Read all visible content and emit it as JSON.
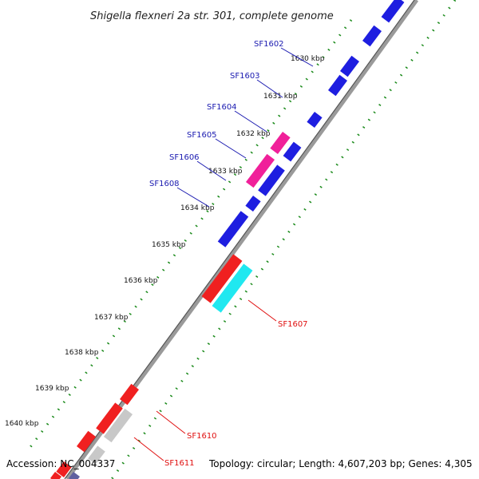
{
  "title": "Shigella flexneri 2a str. 301, complete genome",
  "footer": {
    "accession": "Accession: NC_004337",
    "summary": "Topology: circular; Length: 4,607,203 bp; Genes: 4,305"
  },
  "ticks": [
    "1630 kbp",
    "1631 kbp",
    "1632 kbp",
    "1633 kbp",
    "1634 kbp",
    "1635 kbp",
    "1636 kbp",
    "1637 kbp",
    "1638 kbp",
    "1639 kbp",
    "1640 kbp"
  ],
  "gene_labels": {
    "top": [
      "SF1602",
      "SF1603",
      "SF1604",
      "SF1605",
      "SF1606",
      "SF1608"
    ],
    "bottom": [
      "SF1607",
      "SF1610",
      "SF1611"
    ]
  },
  "colors": {
    "blue_gene": "#1e1ee0",
    "blue_label": "#1a1ab0",
    "red_gene": "#f02020",
    "red_label": "#e01010",
    "pink_gene": "#f0209a",
    "cyan_gene": "#20e8f0",
    "gray_gene": "#c8c8c8",
    "purple_gene": "#6060a0",
    "backbone": "#7a7a7a",
    "ruler": "#1a8a1a"
  }
}
